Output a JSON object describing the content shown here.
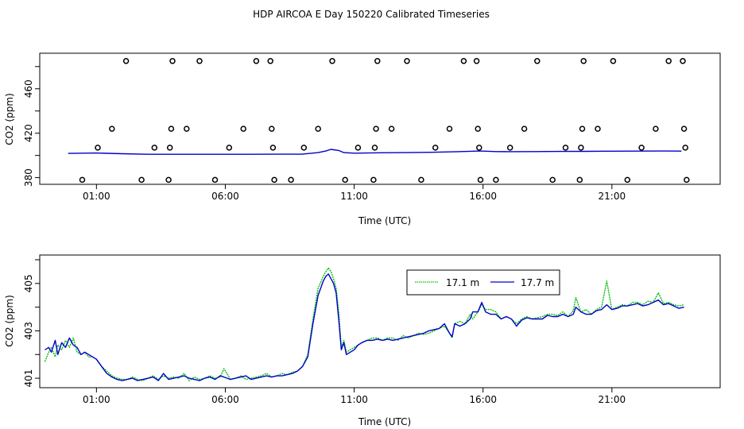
{
  "page_title": "HDP AIRCOA E  Day 150220  Calibrated Timeseries",
  "colors": {
    "series_17_1": "#00c000",
    "series_17_7": "#0000cc",
    "axis": "#000000"
  },
  "chart_data": [
    {
      "type": "scatter",
      "title": "",
      "xlabel": "Time (UTC)",
      "ylabel": "CO2 (ppm)",
      "x_tick_labels": [
        "01:00",
        "06:00",
        "11:00",
        "16:00",
        "21:00"
      ],
      "x_tick_hours": [
        1,
        6,
        11,
        16,
        21
      ],
      "xlim": [
        -1.2,
        25.2
      ],
      "y_tick_labels": [
        "380",
        "420",
        "460"
      ],
      "y_ticks": [
        380,
        400,
        420,
        440,
        460,
        480
      ],
      "ylim": [
        374,
        492
      ],
      "grid": false,
      "legend": "none",
      "points": [
        {
          "x": 0.45,
          "y": 378
        },
        {
          "x": 1.05,
          "y": 407
        },
        {
          "x": 1.6,
          "y": 424
        },
        {
          "x": 2.15,
          "y": 485
        },
        {
          "x": 2.75,
          "y": 378
        },
        {
          "x": 3.25,
          "y": 407
        },
        {
          "x": 3.8,
          "y": 378
        },
        {
          "x": 3.85,
          "y": 407
        },
        {
          "x": 3.9,
          "y": 424
        },
        {
          "x": 3.95,
          "y": 485
        },
        {
          "x": 4.5,
          "y": 424
        },
        {
          "x": 5.0,
          "y": 485
        },
        {
          "x": 5.6,
          "y": 378
        },
        {
          "x": 6.15,
          "y": 407
        },
        {
          "x": 6.7,
          "y": 424
        },
        {
          "x": 7.2,
          "y": 485
        },
        {
          "x": 7.75,
          "y": 485
        },
        {
          "x": 7.8,
          "y": 424
        },
        {
          "x": 7.85,
          "y": 407
        },
        {
          "x": 7.9,
          "y": 378
        },
        {
          "x": 8.55,
          "y": 378
        },
        {
          "x": 9.05,
          "y": 407
        },
        {
          "x": 9.6,
          "y": 424
        },
        {
          "x": 10.15,
          "y": 485
        },
        {
          "x": 10.65,
          "y": 378
        },
        {
          "x": 11.15,
          "y": 407
        },
        {
          "x": 11.75,
          "y": 378
        },
        {
          "x": 11.8,
          "y": 407
        },
        {
          "x": 11.85,
          "y": 424
        },
        {
          "x": 11.9,
          "y": 485
        },
        {
          "x": 12.45,
          "y": 424
        },
        {
          "x": 13.05,
          "y": 485
        },
        {
          "x": 13.6,
          "y": 378
        },
        {
          "x": 14.15,
          "y": 407
        },
        {
          "x": 14.7,
          "y": 424
        },
        {
          "x": 15.25,
          "y": 485
        },
        {
          "x": 15.75,
          "y": 485
        },
        {
          "x": 15.8,
          "y": 424
        },
        {
          "x": 15.85,
          "y": 407
        },
        {
          "x": 15.9,
          "y": 378
        },
        {
          "x": 16.5,
          "y": 378
        },
        {
          "x": 17.05,
          "y": 407
        },
        {
          "x": 17.6,
          "y": 424
        },
        {
          "x": 18.1,
          "y": 485
        },
        {
          "x": 18.7,
          "y": 378
        },
        {
          "x": 19.2,
          "y": 407
        },
        {
          "x": 19.75,
          "y": 378
        },
        {
          "x": 19.8,
          "y": 407
        },
        {
          "x": 19.85,
          "y": 424
        },
        {
          "x": 19.9,
          "y": 485
        },
        {
          "x": 20.45,
          "y": 424
        },
        {
          "x": 21.05,
          "y": 485
        },
        {
          "x": 21.6,
          "y": 378
        },
        {
          "x": 22.15,
          "y": 407
        },
        {
          "x": 22.7,
          "y": 424
        },
        {
          "x": 23.2,
          "y": 485
        },
        {
          "x": 23.75,
          "y": 485
        },
        {
          "x": 23.8,
          "y": 424
        },
        {
          "x": 23.85,
          "y": 407
        },
        {
          "x": 23.9,
          "y": 378
        }
      ],
      "series": [
        {
          "name": "17.7 m",
          "x": [
            -0.1,
            1,
            2,
            3,
            4,
            5,
            6,
            7,
            8,
            9,
            9.6,
            9.9,
            10.1,
            10.4,
            10.6,
            11,
            12,
            13,
            14,
            15,
            15.9,
            16.5,
            17,
            18,
            19,
            20,
            21,
            22,
            23,
            23.7
          ],
          "y": [
            401.8,
            402.2,
            401.5,
            401,
            401,
            401,
            401,
            401,
            401.1,
            401.2,
            402.5,
            404,
            405.5,
            404.5,
            402.5,
            402,
            402.4,
            402.5,
            402.8,
            403.4,
            404,
            403.5,
            403.4,
            403.5,
            403.6,
            403.7,
            403.8,
            403.9,
            404,
            403.9
          ]
        }
      ]
    },
    {
      "type": "line",
      "title": "",
      "xlabel": "Time (UTC)",
      "ylabel": "CO2 (ppm)",
      "x_tick_labels": [
        "01:00",
        "06:00",
        "11:00",
        "16:00",
        "21:00"
      ],
      "x_tick_hours": [
        1,
        6,
        11,
        16,
        21
      ],
      "xlim": [
        -1.2,
        25.2
      ],
      "y_tick_labels": [
        "401",
        "403",
        "405"
      ],
      "y_ticks": [
        401,
        402,
        403,
        404,
        405,
        406
      ],
      "ylim": [
        400.6,
        406.2
      ],
      "grid": false,
      "legend": "top-center",
      "series": [
        {
          "name": "17.1 m",
          "color": "#00c000",
          "x": [
            -1,
            -0.85,
            -0.75,
            -0.6,
            -0.5,
            -0.35,
            -0.2,
            -0.05,
            0.1,
            0.25,
            0.4,
            0.55,
            0.7,
            0.85,
            1,
            1.2,
            1.4,
            1.6,
            1.8,
            2,
            2.2,
            2.4,
            2.6,
            2.8,
            3,
            3.2,
            3.4,
            3.6,
            3.8,
            4,
            4.2,
            4.4,
            4.6,
            4.8,
            5,
            5.2,
            5.4,
            5.6,
            5.8,
            5.95,
            6.2,
            6.4,
            6.6,
            6.8,
            7,
            7.2,
            7.4,
            7.6,
            7.8,
            8,
            8.2,
            8.4,
            8.6,
            8.8,
            9,
            9.2,
            9.4,
            9.6,
            9.8,
            9.9,
            10,
            10.1,
            10.2,
            10.3,
            10.4,
            10.5,
            10.6,
            10.7,
            10.85,
            11,
            11.15,
            11.3,
            11.5,
            11.7,
            11.9,
            12.1,
            12.3,
            12.5,
            12.7,
            12.9,
            13.1,
            13.3,
            13.5,
            13.7,
            13.9,
            14.1,
            14.3,
            14.5,
            14.7,
            14.8,
            14.9,
            15.1,
            15.3,
            15.5,
            15.6,
            15.8,
            15.95,
            16.1,
            16.3,
            16.5,
            16.7,
            16.9,
            17.1,
            17.3,
            17.5,
            17.7,
            17.9,
            18.1,
            18.3,
            18.5,
            18.7,
            18.9,
            19.1,
            19.3,
            19.5,
            19.6,
            19.8,
            20,
            20.2,
            20.4,
            20.6,
            20.8,
            21,
            21.2,
            21.4,
            21.6,
            21.8,
            22,
            22.2,
            22.4,
            22.6,
            22.8,
            23,
            23.2,
            23.4,
            23.6,
            23.8
          ],
          "y": [
            401.7,
            402.1,
            402.3,
            401.9,
            402.4,
            402.2,
            402.6,
            402.3,
            402.7,
            402.1,
            402,
            402.1,
            401.9,
            401.9,
            401.8,
            401.5,
            401.3,
            401.1,
            401,
            400.95,
            400.95,
            401.05,
            400.95,
            400.9,
            401,
            401.1,
            400.95,
            401.1,
            401,
            401.05,
            401,
            401.2,
            400.9,
            401.05,
            400.95,
            401,
            401.1,
            401,
            401.05,
            401.4,
            400.95,
            401,
            401.1,
            400.95,
            401,
            401.05,
            401.1,
            401.2,
            401.05,
            401.1,
            401.2,
            401.15,
            401.25,
            401.3,
            401.5,
            402,
            403.5,
            404.8,
            405.3,
            405.5,
            405.65,
            405.5,
            405.2,
            404.8,
            403.8,
            402.3,
            402.6,
            402.1,
            402.2,
            402.3,
            402.4,
            402.5,
            402.6,
            402.7,
            402.7,
            402.6,
            402.7,
            402.7,
            402.6,
            402.8,
            402.7,
            402.8,
            402.9,
            402.85,
            402.9,
            403,
            403.1,
            403.2,
            402.9,
            402.7,
            403.3,
            403.4,
            403.3,
            403.7,
            403.5,
            403.8,
            404.1,
            403.9,
            403.9,
            403.8,
            403.5,
            403.6,
            403.5,
            403.3,
            403.5,
            403.6,
            403.5,
            403.55,
            403.6,
            403.7,
            403.7,
            403.65,
            403.8,
            403.6,
            403.85,
            404.4,
            403.8,
            403.9,
            403.7,
            403.9,
            404,
            405.1,
            403.9,
            404,
            404.1,
            404.05,
            404.2,
            404.2,
            404.1,
            404.25,
            404.2,
            404.6,
            404.15,
            404.2,
            404.1,
            404.05,
            404.1
          ]
        },
        {
          "name": "17.7 m",
          "color": "#0000cc",
          "x": [
            -1,
            -0.85,
            -0.75,
            -0.6,
            -0.5,
            -0.35,
            -0.2,
            -0.05,
            0.1,
            0.25,
            0.4,
            0.55,
            0.7,
            0.85,
            1,
            1.2,
            1.4,
            1.6,
            1.8,
            2,
            2.2,
            2.4,
            2.6,
            2.8,
            3,
            3.2,
            3.4,
            3.6,
            3.8,
            4,
            4.2,
            4.4,
            4.6,
            4.8,
            5,
            5.2,
            5.4,
            5.6,
            5.8,
            5.95,
            6.2,
            6.4,
            6.6,
            6.8,
            7,
            7.2,
            7.4,
            7.6,
            7.8,
            8,
            8.2,
            8.4,
            8.6,
            8.8,
            9,
            9.2,
            9.4,
            9.6,
            9.8,
            9.9,
            10,
            10.1,
            10.2,
            10.3,
            10.4,
            10.5,
            10.6,
            10.7,
            10.85,
            11,
            11.15,
            11.3,
            11.5,
            11.7,
            11.9,
            12.1,
            12.3,
            12.5,
            12.7,
            12.9,
            13.1,
            13.3,
            13.5,
            13.7,
            13.9,
            14.1,
            14.3,
            14.5,
            14.7,
            14.8,
            14.9,
            15.1,
            15.3,
            15.5,
            15.6,
            15.8,
            15.95,
            16.1,
            16.3,
            16.5,
            16.7,
            16.9,
            17.1,
            17.3,
            17.5,
            17.7,
            17.9,
            18.1,
            18.3,
            18.5,
            18.7,
            18.9,
            19.1,
            19.3,
            19.5,
            19.6,
            19.8,
            20,
            20.2,
            20.4,
            20.6,
            20.8,
            21,
            21.2,
            21.4,
            21.6,
            21.8,
            22,
            22.2,
            22.4,
            22.6,
            22.8,
            23,
            23.2,
            23.4,
            23.6,
            23.8
          ],
          "y": [
            402.2,
            402.3,
            402.1,
            402.6,
            402,
            402.5,
            402.3,
            402.7,
            402.4,
            402.3,
            402,
            402.1,
            402,
            401.9,
            401.8,
            401.5,
            401.2,
            401.05,
            400.95,
            400.9,
            400.95,
            401,
            400.9,
            400.95,
            401,
            401.05,
            400.9,
            401.2,
            400.95,
            401,
            401.05,
            401.1,
            401,
            400.95,
            400.9,
            401,
            401.05,
            400.95,
            401.1,
            401.05,
            400.95,
            401,
            401.05,
            401.1,
            400.95,
            401,
            401.05,
            401.1,
            401.05,
            401.1,
            401.1,
            401.15,
            401.2,
            401.3,
            401.5,
            401.9,
            403.3,
            404.5,
            405.1,
            405.3,
            405.4,
            405.2,
            405,
            404.6,
            403.5,
            402.2,
            402.5,
            402,
            402.1,
            402.2,
            402.4,
            402.5,
            402.6,
            402.6,
            402.65,
            402.6,
            402.65,
            402.6,
            402.65,
            402.7,
            402.75,
            402.8,
            402.85,
            402.9,
            403,
            403.05,
            403.1,
            403.3,
            402.9,
            402.75,
            403.3,
            403.2,
            403.3,
            403.5,
            403.8,
            403.8,
            404.2,
            403.8,
            403.7,
            403.7,
            403.5,
            403.6,
            403.5,
            403.2,
            403.45,
            403.55,
            403.5,
            403.5,
            403.5,
            403.65,
            403.6,
            403.6,
            403.7,
            403.6,
            403.7,
            404,
            403.8,
            403.7,
            403.7,
            403.85,
            403.9,
            404.1,
            403.9,
            403.95,
            404.05,
            404.05,
            404.1,
            404.15,
            404.05,
            404.1,
            404.2,
            404.3,
            404.1,
            404.15,
            404.05,
            403.95,
            404
          ]
        }
      ]
    }
  ]
}
